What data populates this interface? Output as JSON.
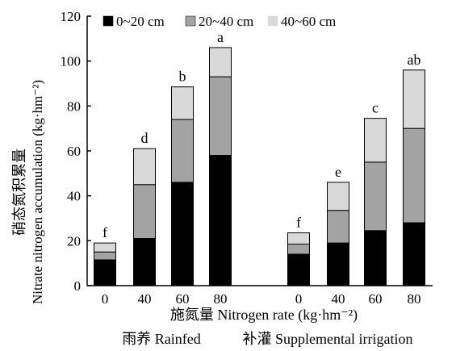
{
  "chart_data": {
    "type": "bar",
    "stacked": true,
    "ylabel_cn": "硝态氮积累量",
    "ylabel_en": "Nitrate nitrogen accumulation (kg·hm⁻²)",
    "xlabel": "施氮量 Nitrogen rate (kg·hm⁻²)",
    "ylim": [
      0,
      120
    ],
    "yticks": [
      0,
      20,
      40,
      60,
      80,
      100,
      120
    ],
    "grid": false,
    "legend_position": "top",
    "groups": [
      {
        "label": "雨养 Rainfed",
        "categories": [
          "0",
          "40",
          "60",
          "80"
        ],
        "letters": [
          "f",
          "d",
          "b",
          "a"
        ],
        "series_values": [
          [
            11.5,
            21,
            46,
            58
          ],
          [
            3.5,
            24,
            28,
            35
          ],
          [
            4,
            16,
            14.5,
            13
          ]
        ]
      },
      {
        "label": "补灌 Supplemental irrigation",
        "categories": [
          "0",
          "40",
          "60",
          "80"
        ],
        "letters": [
          "f",
          "e",
          "c",
          "ab"
        ],
        "series_values": [
          [
            14,
            19,
            24.5,
            28
          ],
          [
            4.5,
            14.5,
            30.5,
            42
          ],
          [
            5,
            12.5,
            19.5,
            26
          ]
        ]
      }
    ],
    "series": [
      {
        "name": "0~20 cm",
        "color": "#000000"
      },
      {
        "name": "20~40 cm",
        "color": "#a3a3a3"
      },
      {
        "name": "40~60 cm",
        "color": "#d9d9d9"
      }
    ]
  }
}
